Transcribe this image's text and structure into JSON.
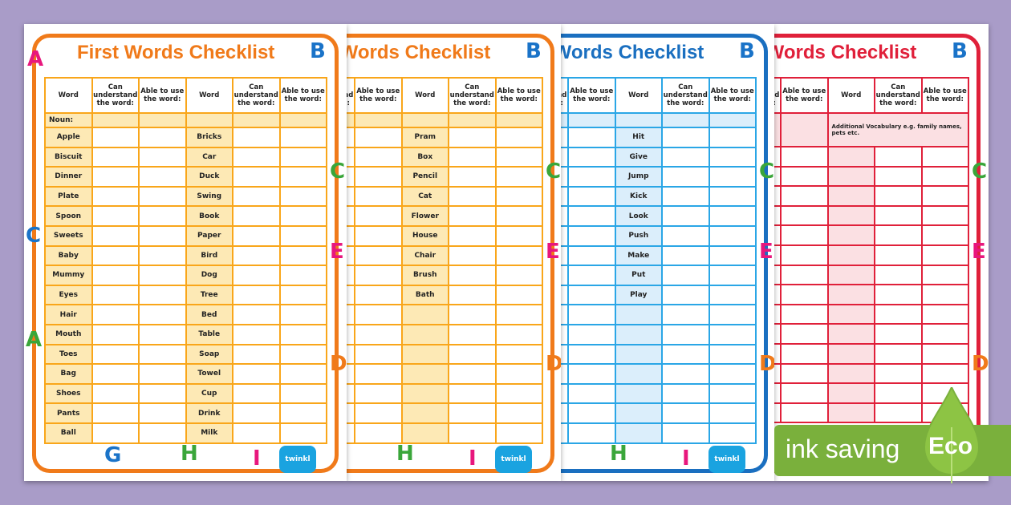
{
  "title": "First Words Checklist",
  "headers": [
    "Word",
    "Can understand the word:",
    "Able to use the word:",
    "Word",
    "Can understand the word:",
    "Able to use the word:"
  ],
  "pages": [
    {
      "theme": {
        "frame": "#f07a1a",
        "grid": "#f9a61a",
        "shade": "#fde9b5",
        "title": "#f07a1a"
      },
      "subheader": "Noun:",
      "left_words": [
        "Apple",
        "Biscuit",
        "Dinner",
        "Plate",
        "Spoon",
        "Sweets",
        "Baby",
        "Mummy",
        "Eyes",
        "Hair",
        "Mouth",
        "Toes",
        "Bag",
        "Shoes",
        "Pants",
        "Ball"
      ],
      "right_words": [
        "Bricks",
        "Car",
        "Duck",
        "Swing",
        "Book",
        "Paper",
        "Bird",
        "Dog",
        "Tree",
        "Bed",
        "Table",
        "Soap",
        "Towel",
        "Cup",
        "Drink",
        "Milk"
      ]
    },
    {
      "theme": {
        "frame": "#f07a1a",
        "grid": "#f9a61a",
        "shade": "#fde9b5",
        "title": "#f07a1a"
      },
      "subheader": "",
      "left_words": [],
      "right_words": [
        "Pram",
        "Box",
        "Pencil",
        "Cat",
        "Flower",
        "House",
        "Chair",
        "Brush",
        "Bath"
      ]
    },
    {
      "theme": {
        "frame": "#1a6fc0",
        "grid": "#2aa6e6",
        "shade": "#dbeefb",
        "title": "#1a6fc0"
      },
      "subheader": "",
      "left_words": [],
      "right_words": [
        "Hit",
        "Give",
        "Jump",
        "Kick",
        "Look",
        "Push",
        "Make",
        "Put",
        "Play"
      ]
    },
    {
      "theme": {
        "frame": "#e0203a",
        "grid": "#e0203a",
        "shade": "#fbe0e3",
        "title": "#e0203a"
      },
      "subheader": "Additional Vocabulary e.g. family names, pets etc.",
      "left_words": [],
      "right_words": []
    }
  ],
  "decorations": {
    "letters": [
      "A",
      "B",
      "C",
      "E",
      "G",
      "H",
      "I",
      "D"
    ],
    "logo": "twinkl"
  },
  "badge": {
    "label": "ink saving",
    "eco": "Eco",
    "color": "#7ab03c"
  }
}
